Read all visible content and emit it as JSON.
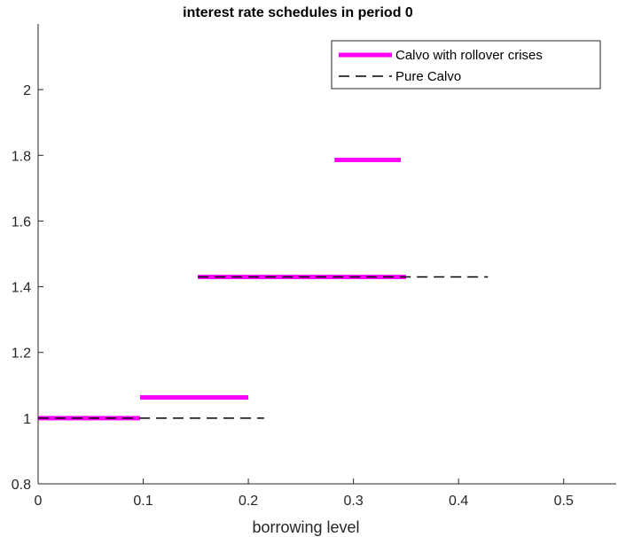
{
  "chart_data": {
    "type": "line",
    "title": "interest rate schedules in period 0",
    "xlabel": "borrowing level",
    "ylabel": "",
    "xlim": [
      0,
      0.55
    ],
    "ylim": [
      0.8,
      2.2
    ],
    "x_ticks": [
      "0",
      "0.1",
      "0.2",
      "0.3",
      "0.4",
      "0.5"
    ],
    "x_tick_values": [
      0,
      0.1,
      0.2,
      0.3,
      0.4,
      0.5
    ],
    "y_ticks": [
      "0.8",
      "1",
      "1.2",
      "1.4",
      "1.6",
      "1.8",
      "2"
    ],
    "y_tick_values": [
      0.8,
      1.0,
      1.2,
      1.4,
      1.6,
      1.8,
      2.0
    ],
    "grid": false,
    "legend_position": "top-right",
    "series": [
      {
        "name": "Calvo with rollover crises",
        "color": "#ff00ff",
        "style": "solid",
        "segments": [
          {
            "x": [
              0.0,
              0.097
            ],
            "y": [
              1.0,
              1.0
            ]
          },
          {
            "x": [
              0.097,
              0.2
            ],
            "y": [
              1.063,
              1.063
            ]
          },
          {
            "x": [
              0.152,
              0.35
            ],
            "y": [
              1.43,
              1.43
            ]
          },
          {
            "x": [
              0.282,
              0.345
            ],
            "y": [
              1.786,
              1.786
            ]
          }
        ]
      },
      {
        "name": "Pure Calvo",
        "color": "#000000",
        "style": "dashed",
        "segments": [
          {
            "x": [
              0.0,
              0.215
            ],
            "y": [
              1.0,
              1.0
            ]
          },
          {
            "x": [
              0.152,
              0.428
            ],
            "y": [
              1.43,
              1.43
            ]
          }
        ]
      }
    ]
  }
}
